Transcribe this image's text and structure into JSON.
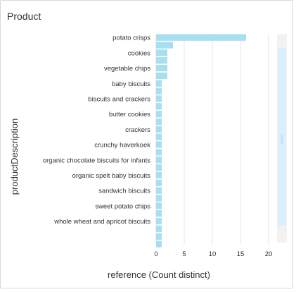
{
  "panel": {
    "title": "Product"
  },
  "colors": {
    "bar": "#a7def0",
    "grid": "#e6e6e6",
    "scrollbar_track": "#f2f2f2",
    "scrollbar_thumb": "#dcefff"
  },
  "chart_data": {
    "type": "bar",
    "orientation": "horizontal",
    "xlabel": "reference (Count distinct)",
    "ylabel": "productDescription",
    "xlim": [
      0,
      22
    ],
    "xticks": [
      0,
      5,
      10,
      15,
      20
    ],
    "grid": true,
    "labeled_categories": [
      "potato crisps",
      "cookies",
      "vegetable chips",
      "baby biscuits",
      "biscuits and crackers",
      "butter cookies",
      "crackers",
      "crunchy haverkoek",
      "organic chocolate biscuits for infants",
      "organic spelt baby biscuits",
      "sandwich biscuits",
      "sweet potato chips",
      "whole wheat and apricot biscuits"
    ],
    "values": [
      16,
      3,
      2,
      2,
      2,
      2,
      1,
      1,
      1,
      1,
      1,
      1,
      1,
      1,
      1,
      1,
      1,
      1,
      1,
      1,
      1,
      1,
      1,
      1,
      1,
      1,
      1,
      1
    ]
  }
}
